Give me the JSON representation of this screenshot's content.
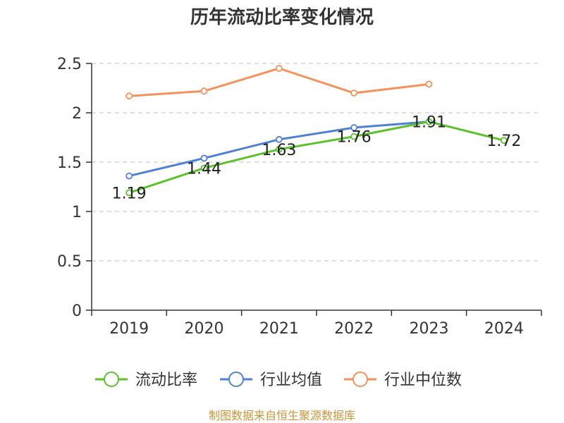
{
  "chart_data": {
    "type": "line",
    "title": "历年流动比率变化情况",
    "categories": [
      "2019",
      "2020",
      "2021",
      "2022",
      "2023",
      "2024"
    ],
    "ylim": [
      0,
      2.5
    ],
    "yticks": [
      "0",
      "0.5",
      "1",
      "1.5",
      "2",
      "2.5"
    ],
    "grid": true,
    "legend_position": "bottom",
    "series": [
      {
        "name": "流动比率",
        "color": "#5cc22b",
        "values": [
          1.19,
          1.44,
          1.63,
          1.76,
          1.91,
          1.72
        ],
        "labels": [
          "1.19",
          "1.44",
          "1.63",
          "1.76",
          "1.91",
          "1.72"
        ]
      },
      {
        "name": "行业均值",
        "color": "#4f80d6",
        "values": [
          1.36,
          1.54,
          1.73,
          1.85,
          1.91,
          null
        ]
      },
      {
        "name": "行业中位数",
        "color": "#f5915a",
        "values": [
          2.17,
          2.22,
          2.45,
          2.2,
          2.29,
          null
        ]
      }
    ]
  },
  "source": "制图数据来自恒生聚源数据库"
}
